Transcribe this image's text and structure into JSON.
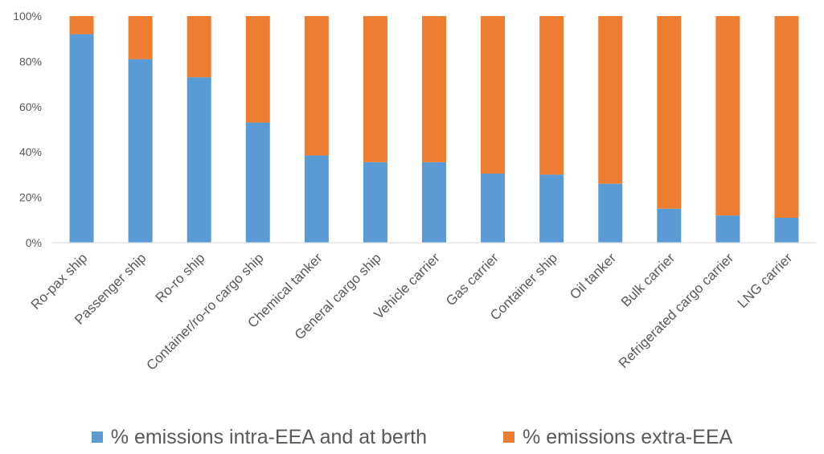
{
  "chart_data": {
    "type": "bar",
    "stacked": true,
    "percent_stacked": true,
    "title": "",
    "xlabel": "",
    "ylabel": "",
    "ylim": [
      0,
      100
    ],
    "y_ticks": [
      "0%",
      "20%",
      "40%",
      "60%",
      "80%",
      "100%"
    ],
    "grid": false,
    "legend_position": "bottom",
    "categories": [
      "Ro-pax ship",
      "Passenger ship",
      "Ro-ro ship",
      "Container/ro-ro cargo ship",
      "Chemical tanker",
      "General cargo ship",
      "Vehicle carrier",
      "Gas carrier",
      "Container ship",
      "Oil tanker",
      "Bulk carrier",
      "Refrigerated cargo carrier",
      "LNG carrier"
    ],
    "series": [
      {
        "name": "% emissions intra-EEA and at berth",
        "color": "#5B9BD5",
        "values": [
          92,
          81,
          73,
          53,
          38.5,
          35.5,
          35.5,
          30.5,
          30,
          26,
          15,
          12,
          11
        ]
      },
      {
        "name": "% emissions extra-EEA",
        "color": "#ED7D31",
        "values": [
          8,
          19,
          27,
          47,
          61.5,
          64.5,
          64.5,
          69.5,
          70,
          74,
          85,
          88,
          89
        ]
      }
    ]
  }
}
